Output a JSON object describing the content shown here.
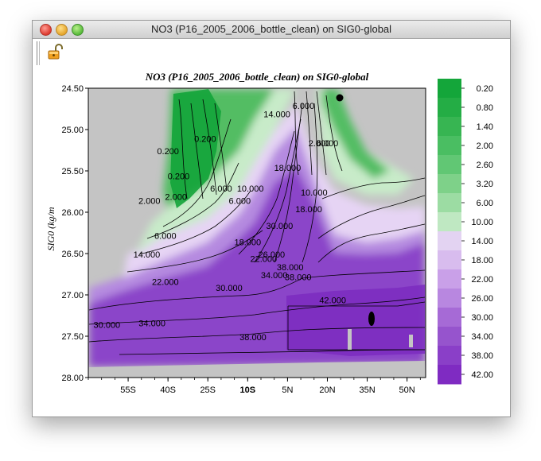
{
  "window": {
    "title": "NO3 (P16_2005_2006_bottle_clean) on SIG0-global"
  },
  "toolbar": {
    "lock_icon": "open-padlock-icon"
  },
  "chart_data": {
    "type": "heatmap",
    "title": "NO3 (P16_2005_2006_bottle_clean) on SIG0-global",
    "ylabel": "SIG0 (kg/m",
    "xlabel": "",
    "x_ticks": [
      "55S",
      "40S",
      "25S",
      "10S",
      "5N",
      "20N",
      "35N",
      "50N"
    ],
    "x_tick_values": [
      -55,
      -40,
      -25,
      -10,
      5,
      20,
      35,
      50
    ],
    "y_ticks": [
      "24.50",
      "25.00",
      "25.50",
      "26.00",
      "26.50",
      "27.00",
      "27.50",
      "28.00"
    ],
    "y_tick_values": [
      24.5,
      25.0,
      25.5,
      26.0,
      26.5,
      27.0,
      27.5,
      28.0
    ],
    "xlim": [
      -70,
      57
    ],
    "ylim": [
      24.5,
      28.0
    ],
    "y_inverted": true,
    "missing_color": "#c4c4c4",
    "colorbar": {
      "labels": [
        "0.20",
        "0.80",
        "1.40",
        "2.00",
        "2.60",
        "3.20",
        "6.00",
        "10.00",
        "14.00",
        "18.00",
        "22.00",
        "26.00",
        "30.00",
        "34.00",
        "38.00",
        "42.00"
      ],
      "colors": [
        "#14a63a",
        "#24ad45",
        "#37b552",
        "#4abe62",
        "#61c774",
        "#7ed189",
        "#9cdca3",
        "#bfe8c2",
        "#e3d3f2",
        "#d8bcee",
        "#c9a0e8",
        "#b887e0",
        "#a66ad6",
        "#9654cd",
        "#8a3fc8",
        "#7f2bc2"
      ]
    },
    "contour_labels": [
      {
        "text": "0.200",
        "x": -40,
        "y": 25.3
      },
      {
        "text": "0.200",
        "x": -36,
        "y": 25.6
      },
      {
        "text": "0.200",
        "x": -26,
        "y": 25.15
      },
      {
        "text": "2.000",
        "x": -47,
        "y": 25.9
      },
      {
        "text": "2.000",
        "x": -37,
        "y": 25.85
      },
      {
        "text": "6.000",
        "x": -41,
        "y": 26.32
      },
      {
        "text": "6.000",
        "x": -20,
        "y": 25.75
      },
      {
        "text": "6.000",
        "x": -13,
        "y": 25.9
      },
      {
        "text": "10.000",
        "x": -9,
        "y": 25.75
      },
      {
        "text": "14.000",
        "x": 1,
        "y": 24.85
      },
      {
        "text": "6.000",
        "x": 11,
        "y": 24.75
      },
      {
        "text": "2.000",
        "x": 17,
        "y": 25.2
      },
      {
        "text": "6.000",
        "x": 20,
        "y": 25.2
      },
      {
        "text": "18.000",
        "x": 5,
        "y": 25.5
      },
      {
        "text": "10.000",
        "x": 15,
        "y": 25.8
      },
      {
        "text": "14.000",
        "x": -48,
        "y": 26.55
      },
      {
        "text": "18.000",
        "x": -10,
        "y": 26.4
      },
      {
        "text": "22.000",
        "x": -4,
        "y": 26.6
      },
      {
        "text": "26.000",
        "x": -1,
        "y": 26.55
      },
      {
        "text": "18.000",
        "x": 13,
        "y": 26.0
      },
      {
        "text": "22.000",
        "x": -41,
        "y": 26.88
      },
      {
        "text": "30.000",
        "x": -17,
        "y": 26.95
      },
      {
        "text": "34.000",
        "x": 0,
        "y": 26.8
      },
      {
        "text": "38.000",
        "x": 6,
        "y": 26.7
      },
      {
        "text": "30.000",
        "x": 2,
        "y": 26.2
      },
      {
        "text": "38.000",
        "x": 9,
        "y": 26.82
      },
      {
        "text": "42.000",
        "x": 22,
        "y": 27.1
      },
      {
        "text": "30.000",
        "x": -63,
        "y": 27.4
      },
      {
        "text": "34.000",
        "x": -46,
        "y": 27.38
      },
      {
        "text": "38.000",
        "x": -8,
        "y": 27.55
      }
    ]
  }
}
